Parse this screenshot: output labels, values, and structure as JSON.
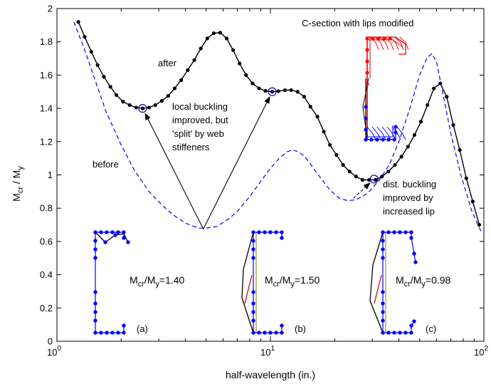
{
  "chart_data": {
    "type": "line",
    "xlabel": "half-wavelength (in.)",
    "ylabel": "M_cr / M_y",
    "xscale": "log",
    "xlim": [
      1,
      100
    ],
    "ylim": [
      0,
      2
    ],
    "grid": false,
    "x_ticks": [
      {
        "value": 1,
        "base": "10",
        "exp": "0"
      },
      {
        "value": 10,
        "base": "10",
        "exp": "1"
      },
      {
        "value": 100,
        "base": "10",
        "exp": "2"
      }
    ],
    "y_ticks": [
      "0",
      "0.2",
      "0.4",
      "0.6",
      "0.8",
      "1",
      "1.2",
      "1.4",
      "1.6",
      "1.8",
      "2"
    ],
    "series": [
      {
        "name": "after",
        "style": "solid-with-dots",
        "color": "#000000",
        "x": [
          1.26,
          1.35,
          1.45,
          1.55,
          1.66,
          1.78,
          1.9,
          2.04,
          2.19,
          2.35,
          2.52,
          2.7,
          2.89,
          3.1,
          3.32,
          3.56,
          3.82,
          4.1,
          4.4,
          4.72,
          5.06,
          5.43,
          5.82,
          6.24,
          6.69,
          7.17,
          7.69,
          8.25,
          8.85,
          9.49,
          10.2,
          10.9,
          11.7,
          12.5,
          13.4,
          14.4,
          15.4,
          16.6,
          17.8,
          19.0,
          20.4,
          21.9,
          23.5,
          25.2,
          27.0,
          29.0,
          31.1,
          33.3,
          35.7,
          38.3,
          41.1,
          44.1,
          47.3,
          50.7,
          54.4,
          58.3,
          62.5,
          67.0,
          71.9,
          77.1,
          82.7,
          88.7,
          95.1
        ],
        "y": [
          1.92,
          1.83,
          1.74,
          1.66,
          1.59,
          1.53,
          1.48,
          1.44,
          1.42,
          1.405,
          1.4,
          1.405,
          1.42,
          1.445,
          1.475,
          1.52,
          1.57,
          1.63,
          1.69,
          1.76,
          1.82,
          1.852,
          1.855,
          1.82,
          1.75,
          1.67,
          1.6,
          1.55,
          1.52,
          1.505,
          1.5,
          1.503,
          1.51,
          1.51,
          1.5,
          1.47,
          1.41,
          1.35,
          1.26,
          1.18,
          1.12,
          1.06,
          1.02,
          0.99,
          0.97,
          0.97,
          0.97,
          0.99,
          1.02,
          1.06,
          1.11,
          1.17,
          1.24,
          1.32,
          1.42,
          1.52,
          1.55,
          1.47,
          1.3,
          1.15,
          0.98,
          0.84,
          0.7
        ]
      },
      {
        "name": "before",
        "style": "dashed",
        "color": "#0000ff",
        "x": [
          1.2,
          1.35,
          1.5,
          1.7,
          2.0,
          2.3,
          2.7,
          3.1,
          3.5,
          4.0,
          4.6,
          5.0,
          5.6,
          6.3,
          7.0,
          8.0,
          9.0,
          10.0,
          11.0,
          12.0,
          12.7,
          13.5,
          14.5,
          15.5,
          17.0,
          19.0,
          21.0,
          23.0,
          25.0,
          27.0,
          29.0,
          32.0,
          36.0,
          40.0,
          45.0,
          50.0,
          54.0,
          57.0,
          60.0,
          64.0,
          70.0,
          78.0,
          88.0,
          97.0
        ],
        "y": [
          1.92,
          1.75,
          1.58,
          1.38,
          1.18,
          1.03,
          0.9,
          0.82,
          0.76,
          0.71,
          0.68,
          0.68,
          0.69,
          0.73,
          0.78,
          0.87,
          0.96,
          1.04,
          1.1,
          1.14,
          1.15,
          1.14,
          1.11,
          1.06,
          0.99,
          0.91,
          0.86,
          0.845,
          0.85,
          0.87,
          0.9,
          0.96,
          1.06,
          1.2,
          1.4,
          1.6,
          1.7,
          1.73,
          1.68,
          1.5,
          1.25,
          1.0,
          0.78,
          0.66
        ]
      }
    ],
    "circled_points": [
      {
        "x": 2.52,
        "y": 1.4
      },
      {
        "x": 10.2,
        "y": 1.5
      },
      {
        "x": 30.6,
        "y": 0.975
      }
    ],
    "annotations": {
      "after": "after",
      "before": "before",
      "local_lines": [
        "local buckling",
        "improved, but",
        "'split' by web",
        "stiffeners"
      ],
      "dist_lines": [
        "dist. buckling",
        "improved by",
        "increased lip"
      ],
      "inset_title": "C-section with lips modified"
    },
    "arrows": [
      {
        "from": [
          4.85,
          0.675
        ],
        "to": [
          2.52,
          1.4
        ]
      },
      {
        "from": [
          4.85,
          0.675
        ],
        "to": [
          10.2,
          1.5
        ]
      },
      {
        "from": [
          24.5,
          0.86
        ],
        "to": [
          30.6,
          0.975
        ]
      }
    ],
    "sections": [
      {
        "label": "(a)",
        "mcr_base": "M",
        "mcr_sub": "cr",
        "my_base": "M",
        "my_sub": "y",
        "value": "=1.40"
      },
      {
        "label": "(b)",
        "mcr_base": "M",
        "mcr_sub": "cr",
        "my_base": "M",
        "my_sub": "y",
        "value": "=1.50"
      },
      {
        "label": "(c)",
        "mcr_base": "M",
        "mcr_sub": "cr",
        "my_base": "M",
        "my_sub": "y",
        "value": "=0.98"
      }
    ],
    "ylabel_parts": {
      "a_base": "M",
      "a_sub": "cr",
      "mid": " / ",
      "b_base": "M",
      "b_sub": "y"
    }
  }
}
